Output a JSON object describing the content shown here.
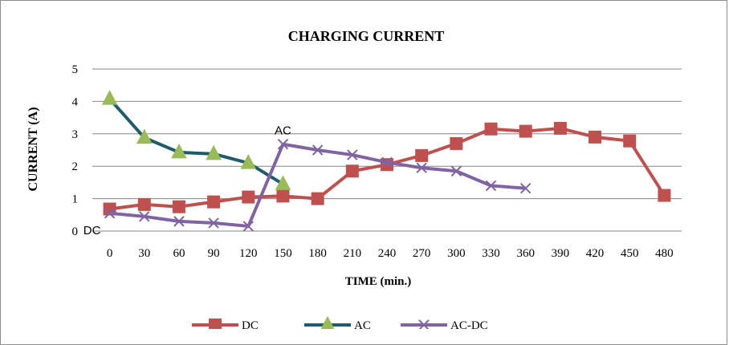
{
  "chart_data": {
    "type": "line",
    "title": "CHARGING CURRENT",
    "xlabel": "TIME (min.)",
    "ylabel": "CURRENT (A)",
    "x": [
      0,
      30,
      60,
      90,
      120,
      150,
      180,
      210,
      240,
      270,
      300,
      330,
      360,
      390,
      420,
      450,
      480
    ],
    "ylim": [
      0,
      5
    ],
    "yticks": [
      0,
      1,
      2,
      3,
      4,
      5
    ],
    "grid": true,
    "legend_position": "bottom",
    "series": [
      {
        "name": "DC",
        "color": "#c0504d",
        "marker": "square",
        "x": [
          0,
          30,
          60,
          90,
          120,
          150,
          180,
          210,
          240,
          270,
          300,
          330,
          360,
          390,
          420,
          450,
          480
        ],
        "values": [
          0.68,
          0.82,
          0.75,
          0.9,
          1.05,
          1.08,
          1.0,
          1.85,
          2.05,
          2.33,
          2.7,
          3.15,
          3.08,
          3.17,
          2.9,
          2.78,
          1.1
        ]
      },
      {
        "name": "AC",
        "color": "#1f5c6b",
        "marker": "triangle",
        "x": [
          0,
          30,
          60,
          90,
          120,
          150
        ],
        "values": [
          4.08,
          2.88,
          2.43,
          2.38,
          2.1,
          1.45
        ]
      },
      {
        "name": "AC-DC",
        "color": "#8064a2",
        "marker": "x",
        "x": [
          0,
          30,
          60,
          90,
          120,
          150,
          180,
          210,
          240,
          270,
          300,
          330,
          360
        ],
        "values": [
          0.55,
          0.45,
          0.3,
          0.25,
          0.15,
          2.68,
          2.5,
          2.35,
          2.12,
          1.95,
          1.85,
          1.4,
          1.32
        ]
      }
    ],
    "annotations": [
      {
        "text": "AC",
        "x": 150,
        "y": 2.68
      },
      {
        "text": "DC",
        "x": 0,
        "y": 0
      }
    ]
  }
}
